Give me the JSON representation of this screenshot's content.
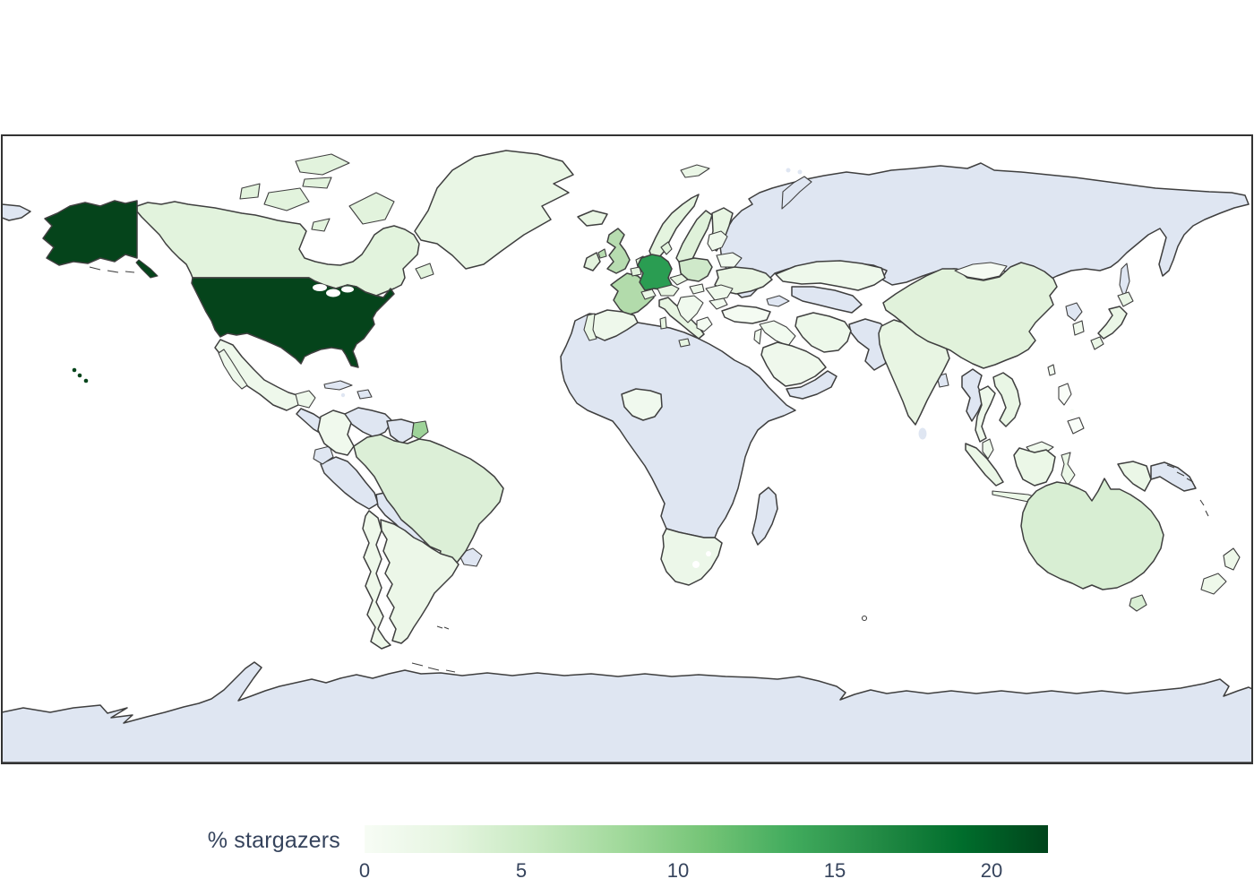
{
  "figure": {
    "background": "#ffffff",
    "ocean_color": "#ffffff",
    "frame_color": "#333333",
    "country_border_color": "#3f3f3f",
    "no_data_color": "#dfe6f2"
  },
  "legend": {
    "label": "% stargazers",
    "text_color": "#35435c",
    "vmin": 0,
    "vmax": 21.8,
    "ticks": [
      0,
      5,
      10,
      15,
      20
    ],
    "colormap": "Greens",
    "gradient_stops": [
      "#f7fcf5",
      "#e5f5e0",
      "#c7e9c0",
      "#a1d99b",
      "#74c476",
      "#41ab5d",
      "#238b45",
      "#006d2c",
      "#00441b"
    ]
  },
  "chart_data": {
    "type": "choropleth",
    "projection": "equirectangular",
    "title": "",
    "legend_label": "% stargazers",
    "colormap": "Greens",
    "vmin": 0,
    "vmax": 21.8,
    "unit": "% of stargazers",
    "countries": [
      {
        "id": "us",
        "name": "United States",
        "value": 21.5,
        "fill": "#05441b"
      },
      {
        "id": "germany",
        "name": "Germany",
        "value": 15.5,
        "fill": "#2a9d52"
      },
      {
        "id": "french-guiana",
        "name": "French Guiana",
        "value": 8.0,
        "fill": "#9ed399"
      },
      {
        "id": "france",
        "name": "France",
        "value": 6.9,
        "fill": "#b2dbab"
      },
      {
        "id": "uk",
        "name": "United Kingdom",
        "value": 6.7,
        "fill": "#b7dcb0"
      },
      {
        "id": "poland",
        "name": "Poland",
        "value": 4.7,
        "fill": "#cfe9ca"
      },
      {
        "id": "australia",
        "name": "Australia",
        "value": 3.9,
        "fill": "#d8eed3"
      },
      {
        "id": "netherlands",
        "name": "Netherlands",
        "value": 3.8,
        "fill": "#d9efd4"
      },
      {
        "id": "brazil",
        "name": "Brazil",
        "value": 3.5,
        "fill": "#dcefd7"
      },
      {
        "id": "sweden",
        "name": "Sweden",
        "value": 3.3,
        "fill": "#dff1da"
      },
      {
        "id": "china",
        "name": "China",
        "value": 3.1,
        "fill": "#e1f2db"
      },
      {
        "id": "canada",
        "name": "Canada",
        "value": 3.0,
        "fill": "#e2f3dd"
      },
      {
        "id": "denmark",
        "name": "Denmark",
        "value": 3.0,
        "fill": "#e2f3dd"
      },
      {
        "id": "ireland",
        "name": "Ireland",
        "value": 3.0,
        "fill": "#e2f2dd"
      },
      {
        "id": "belgium",
        "name": "Belgium",
        "value": 3.0,
        "fill": "#e2f3dd"
      },
      {
        "id": "norway",
        "name": "Norway",
        "value": 2.8,
        "fill": "#e4f4df"
      },
      {
        "id": "italy",
        "name": "Italy",
        "value": 2.5,
        "fill": "#e7f5e2"
      },
      {
        "id": "finland",
        "name": "Finland",
        "value": 2.5,
        "fill": "#e7f5e2"
      },
      {
        "id": "ukraine",
        "name": "Ukraine",
        "value": 2.4,
        "fill": "#e8f5e3"
      },
      {
        "id": "india",
        "name": "India",
        "value": 2.4,
        "fill": "#e8f5e3"
      },
      {
        "id": "greenland",
        "name": "Greenland",
        "value": 2.3,
        "fill": "#e9f6e5"
      },
      {
        "id": "iceland",
        "name": "Iceland",
        "value": 2.2,
        "fill": "#e9f6e4"
      },
      {
        "id": "japan",
        "name": "Japan",
        "value": 2.2,
        "fill": "#eaf6e6"
      },
      {
        "id": "vietnam",
        "name": "Vietnam",
        "value": 2.2,
        "fill": "#e9f6e5"
      },
      {
        "id": "austria",
        "name": "Austria",
        "value": 2.2,
        "fill": "#e8f5e3"
      },
      {
        "id": "czechia",
        "name": "Czechia",
        "value": 2.2,
        "fill": "#e8f5e3"
      },
      {
        "id": "svalbard",
        "name": "Svalbard (Norway)",
        "value": 2.0,
        "fill": "#eaf6e6"
      },
      {
        "id": "indonesia",
        "name": "Indonesia",
        "value": 2.1,
        "fill": "#ebf7e7"
      },
      {
        "id": "argentina",
        "name": "Argentina",
        "value": 2.0,
        "fill": "#ecf7e8"
      },
      {
        "id": "switzerland",
        "name": "Switzerland",
        "value": 2.0,
        "fill": "#eaf6e6"
      },
      {
        "id": "south-africa",
        "name": "South Africa",
        "value": 1.9,
        "fill": "#ecf7e9"
      },
      {
        "id": "iran",
        "name": "Iran",
        "value": 1.8,
        "fill": "#edf8ea"
      },
      {
        "id": "portugal",
        "name": "Portugal",
        "value": 1.8,
        "fill": "#e9f6e5"
      },
      {
        "id": "spain",
        "name": "Spain",
        "value": 1.7,
        "fill": "#eef8eb"
      },
      {
        "id": "mexico",
        "name": "Mexico",
        "value": 1.7,
        "fill": "#eef8eb"
      },
      {
        "id": "chile",
        "name": "Chile",
        "value": 1.7,
        "fill": "#eef8ea"
      },
      {
        "id": "thailand",
        "name": "Thailand",
        "value": 1.7,
        "fill": "#eef8eb"
      },
      {
        "id": "kazakhstan",
        "name": "Kazakhstan",
        "value": 1.7,
        "fill": "#eef8eb"
      },
      {
        "id": "new-zealand",
        "name": "New Zealand",
        "value": 1.7,
        "fill": "#eef8ea"
      },
      {
        "id": "saudi-arabia",
        "name": "Saudi Arabia",
        "value": 1.6,
        "fill": "#eff8ec"
      },
      {
        "id": "malaysia",
        "name": "Malaysia",
        "value": 1.5,
        "fill": "#eef8eb"
      },
      {
        "id": "romania",
        "name": "Romania",
        "value": 1.5,
        "fill": "#eef8eb"
      },
      {
        "id": "hungary",
        "name": "Hungary",
        "value": 1.5,
        "fill": "#eef8eb"
      },
      {
        "id": "baltics",
        "name": "Baltic states",
        "value": 1.5,
        "fill": "#eef8eb"
      },
      {
        "id": "nigeria",
        "name": "Nigeria",
        "value": 1.4,
        "fill": "#f0f9ee"
      },
      {
        "id": "colombia",
        "name": "Colombia",
        "value": 1.4,
        "fill": "#f0f9ed"
      },
      {
        "id": "belarus",
        "name": "Belarus",
        "value": 1.3,
        "fill": "#f0f9ee"
      },
      {
        "id": "balkans",
        "name": "Western Balkans",
        "value": 1.3,
        "fill": "#f0f9ee"
      },
      {
        "id": "israel-jordan",
        "name": "Israel / Jordan",
        "value": 1.3,
        "fill": "#f0f9ee"
      },
      {
        "id": "iraq-syria",
        "name": "Iraq / Syria",
        "value": 1.2,
        "fill": "#f1faef"
      },
      {
        "id": "bulgaria",
        "name": "Bulgaria",
        "value": 1.2,
        "fill": "#f1faef"
      },
      {
        "id": "south-korea",
        "name": "South Korea",
        "value": 1.2,
        "fill": "#f1faee"
      },
      {
        "id": "taiwan",
        "name": "Taiwan",
        "value": 1.0,
        "fill": "#f2faf0"
      },
      {
        "id": "greece",
        "name": "Greece",
        "value": 0.9,
        "fill": "#f3faf1"
      },
      {
        "id": "turkey",
        "name": "Turkey",
        "value": 0.7,
        "fill": "#f4fbf2"
      },
      {
        "id": "mongolia",
        "name": "Mongolia",
        "value": 0.6,
        "fill": "#f5fbf3"
      },
      {
        "id": "philippines",
        "name": "Philippines",
        "value": 0.2,
        "fill": "#f9fdf8"
      }
    ],
    "no_data_regions": [
      "Russia",
      "most of Africa",
      "Egypt",
      "Madagascar",
      "Peru",
      "Bolivia",
      "Paraguay",
      "Venezuela",
      "Ecuador",
      "Uruguay",
      "Guyana",
      "Suriname",
      "Cuba",
      "Hispaniola",
      "Central America",
      "Myanmar",
      "Bangladesh",
      "Sri Lanka",
      "Pakistan",
      "Afghanistan",
      "Central Asia",
      "Caucasus",
      "Yemen",
      "Oman",
      "North Korea",
      "Papua New Guinea",
      "Antarctica"
    ]
  }
}
